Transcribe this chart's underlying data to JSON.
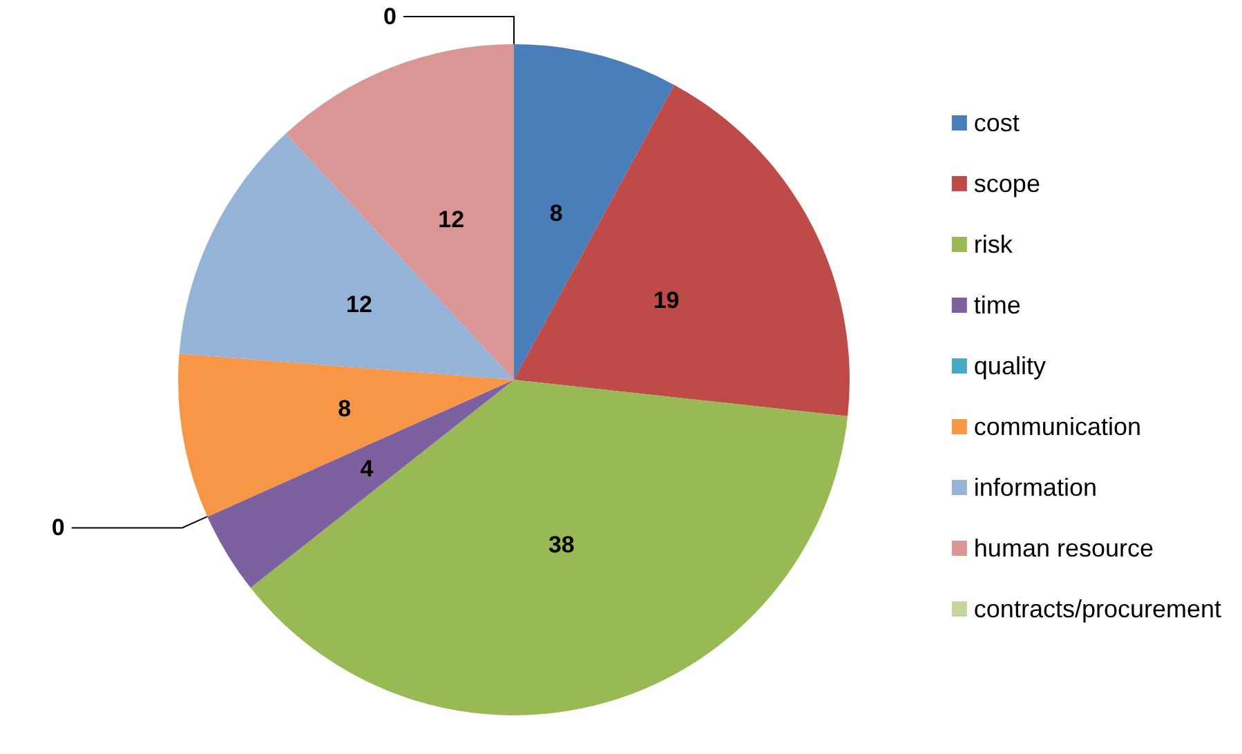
{
  "chart_data": {
    "type": "pie",
    "categories": [
      "cost",
      "scope",
      "risk",
      "time",
      "quality",
      "communication",
      "information",
      "human resource",
      "contracts/procurement"
    ],
    "values": [
      8,
      19,
      38,
      4,
      0,
      8,
      12,
      12,
      0
    ],
    "colors": [
      "#4a7ebb",
      "#be4b48",
      "#98b954",
      "#7d60a0",
      "#46aac5",
      "#f79646",
      "#95b3d7",
      "#d99694",
      "#c3d69b"
    ],
    "value_labels": [
      "8",
      "19",
      "38",
      "4",
      "0",
      "8",
      "12",
      "12",
      "0"
    ],
    "legend": "right"
  }
}
